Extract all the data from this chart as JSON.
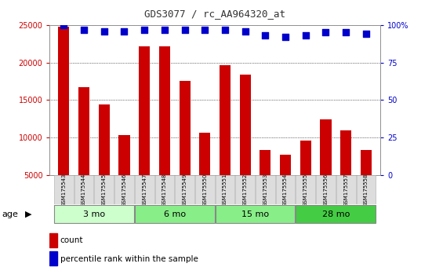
{
  "title": "GDS3077 / rc_AA964320_at",
  "samples": [
    "GSM175543",
    "GSM175544",
    "GSM175545",
    "GSM175546",
    "GSM175547",
    "GSM175548",
    "GSM175549",
    "GSM175550",
    "GSM175551",
    "GSM175552",
    "GSM175553",
    "GSM175554",
    "GSM175555",
    "GSM175556",
    "GSM175557",
    "GSM175558"
  ],
  "counts": [
    24800,
    16700,
    14400,
    10300,
    22200,
    22200,
    17600,
    10600,
    19700,
    18400,
    8400,
    7700,
    9600,
    12400,
    11000,
    8300
  ],
  "percentile_ranks": [
    100,
    97,
    96,
    96,
    97,
    97,
    97,
    97,
    97,
    96,
    93,
    92,
    93,
    95,
    95,
    94
  ],
  "bar_color": "#cc0000",
  "dot_color": "#0000cc",
  "ylim_left": [
    5000,
    25000
  ],
  "ylim_right": [
    0,
    100
  ],
  "yticks_left": [
    5000,
    10000,
    15000,
    20000,
    25000
  ],
  "yticks_right": [
    0,
    25,
    50,
    75,
    100
  ],
  "yticklabels_right": [
    "0",
    "25",
    "50",
    "75",
    "100%"
  ],
  "grid_lines": [
    10000,
    15000,
    20000
  ],
  "legend_count_label": "count",
  "legend_pct_label": "percentile rank within the sample",
  "bar_color_legend": "#cc0000",
  "dot_color_legend": "#0000cc",
  "left_tick_color": "#cc0000",
  "right_tick_color": "#0000cc",
  "bar_width": 0.55,
  "dot_size": 40,
  "group_defs": [
    {
      "label": "3 mo",
      "start": 0,
      "end": 3,
      "color": "#ccffcc"
    },
    {
      "label": "6 mo",
      "start": 4,
      "end": 7,
      "color": "#88ee88"
    },
    {
      "label": "15 mo",
      "start": 8,
      "end": 11,
      "color": "#88ee88"
    },
    {
      "label": "28 mo",
      "start": 12,
      "end": 15,
      "color": "#44cc44"
    }
  ],
  "xlabel_text": "age",
  "xlabel_color": "#000000",
  "ticklabel_area_color": "#cccccc",
  "ticklabel_box_color": "#dddddd",
  "ticklabel_box_edge": "#aaaaaa",
  "plot_bg": "#ffffff",
  "title_fontsize": 9,
  "tick_fontsize": 7,
  "sample_fontsize": 5,
  "group_fontsize": 8,
  "legend_fontsize": 7.5
}
